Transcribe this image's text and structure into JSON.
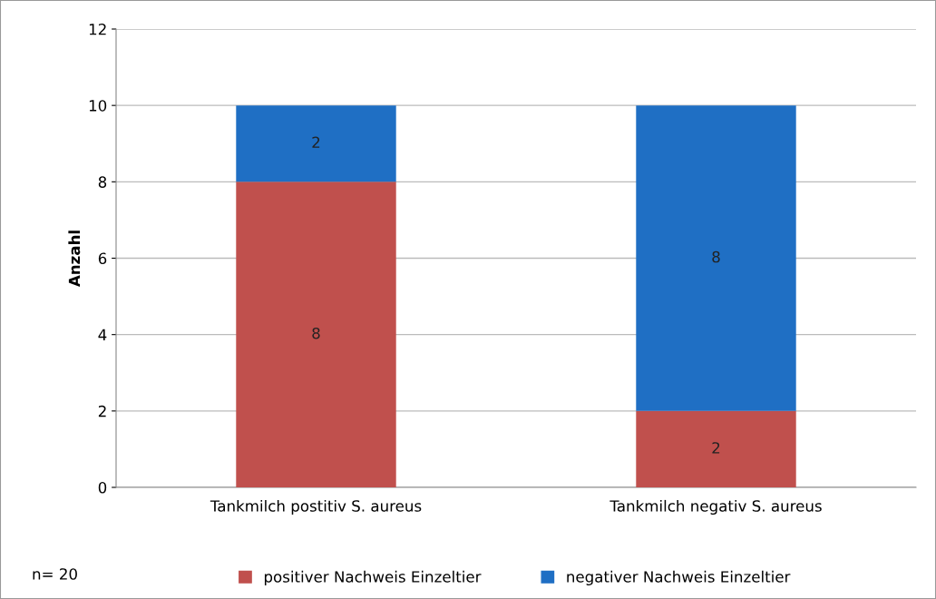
{
  "chart_data": {
    "type": "bar",
    "stacked": true,
    "ylabel": "Anzahl",
    "categories": [
      "Tankmilch postitiv S. aureus",
      "Tankmilch negativ S. aureus"
    ],
    "series": [
      {
        "name": "positiver Nachweis Einzeltier",
        "color": "#c0504d",
        "values": [
          8,
          2
        ]
      },
      {
        "name": "negativer Nachweis Einzeltier",
        "color": "#1f6fc4",
        "values": [
          2,
          8
        ]
      }
    ],
    "ylim": [
      0,
      12
    ],
    "yticks": [
      0,
      2,
      4,
      6,
      8,
      10,
      12
    ],
    "grid": "y",
    "legend": "bottom",
    "data_labels": true,
    "annotations": [
      "n= 20"
    ]
  }
}
